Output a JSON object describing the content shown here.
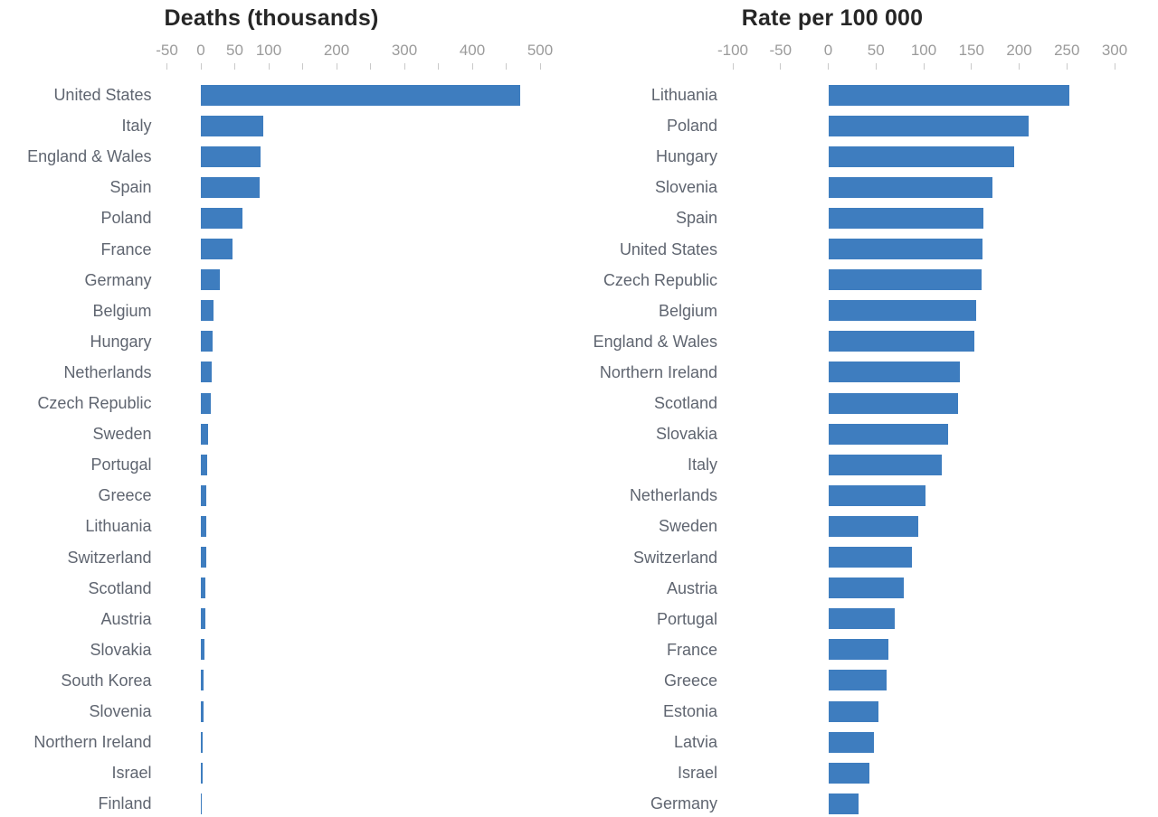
{
  "figure": {
    "background": "#ffffff",
    "bar_color": "#3e7dbf",
    "title_color": "#262626",
    "tick_label_color": "#9b9b9b",
    "tick_mark_color": "#c9c9c9",
    "category_label_color": "#5f6570"
  },
  "chart_data": [
    {
      "type": "bar",
      "orientation": "horizontal",
      "title": "Deaths (thousands)",
      "xlabel": "",
      "ylabel": "",
      "xlim": [
        -50,
        500
      ],
      "tick_step": 50,
      "labeled_ticks": [
        -50,
        0,
        50,
        100,
        200,
        300,
        400,
        500
      ],
      "grid": false,
      "legend": false,
      "categories": [
        "United States",
        "Italy",
        "England & Wales",
        "Spain",
        "Poland",
        "France",
        "Germany",
        "Belgium",
        "Hungary",
        "Netherlands",
        "Czech Republic",
        "Sweden",
        "Portugal",
        "Greece",
        "Lithuania",
        "Switzerland",
        "Scotland",
        "Austria",
        "Slovakia",
        "South Korea",
        "Slovenia",
        "Northern Ireland",
        "Israel",
        "Finland"
      ],
      "values": [
        470,
        92,
        88,
        86,
        61,
        46,
        28,
        19,
        17,
        16,
        15,
        11,
        9,
        8,
        7.5,
        7.5,
        7,
        7,
        5,
        4,
        3.5,
        2,
        2,
        1
      ]
    },
    {
      "type": "bar",
      "orientation": "horizontal",
      "title": "Rate per 100 000",
      "xlabel": "",
      "ylabel": "",
      "xlim": [
        -100,
        300
      ],
      "tick_step": 50,
      "labeled_ticks": [
        -100,
        -50,
        0,
        50,
        100,
        150,
        200,
        250,
        300
      ],
      "grid": false,
      "legend": false,
      "categories": [
        "Lithuania",
        "Poland",
        "Hungary",
        "Slovenia",
        "Spain",
        "United States",
        "Czech Republic",
        "Belgium",
        "England & Wales",
        "Northern Ireland",
        "Scotland",
        "Slovakia",
        "Italy",
        "Netherlands",
        "Sweden",
        "Switzerland",
        "Austria",
        "Portugal",
        "France",
        "Greece",
        "Estonia",
        "Latvia",
        "Israel",
        "Germany"
      ],
      "values": [
        253,
        210,
        195,
        172,
        163,
        162,
        161,
        155,
        153,
        138,
        136,
        126,
        119,
        102,
        94,
        88,
        79,
        70,
        63,
        61,
        53,
        48,
        43,
        32
      ]
    }
  ]
}
